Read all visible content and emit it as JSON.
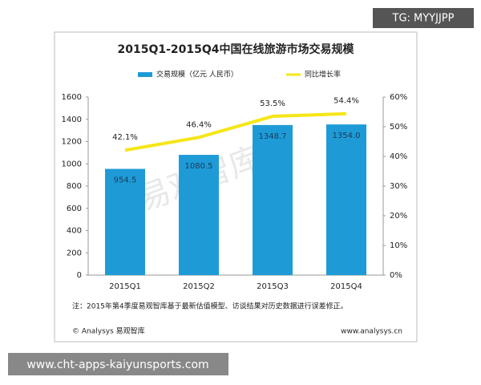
{
  "tag": "TG: MYYJJPP",
  "site_url": "www.cht-apps-kaiyunsports.com",
  "note": "注：2015年第4季度易观智库基于最新估值模型、访谈结果对历史数据进行误差修正。",
  "source": "© Analysys 易观智库",
  "source_url": "www.analysys.cn",
  "watermark": "易观智库",
  "chart_data": {
    "type": "bar",
    "title": "2015Q1-2015Q4中国在线旅游市场交易规模",
    "categories": [
      "2015Q1",
      "2015Q2",
      "2015Q3",
      "2015Q4"
    ],
    "series": [
      {
        "name": "交易规模（亿元 人民币）",
        "type": "bar",
        "color": "#1e9bd7",
        "values": [
          954.5,
          1080.5,
          1348.7,
          1354.0
        ],
        "value_labels": [
          "954.5",
          "1080.5",
          "1348.7",
          "1354.0"
        ]
      },
      {
        "name": "同比增长率",
        "type": "line",
        "axis": "y2",
        "color": "#f5e617",
        "values": [
          42.1,
          46.4,
          53.5,
          54.4
        ],
        "value_labels": [
          "42.1%",
          "46.4%",
          "53.5%",
          "54.4%"
        ]
      }
    ],
    "ylim": [
      0,
      1600
    ],
    "yticks": [
      0,
      200,
      400,
      600,
      800,
      1000,
      1200,
      1400,
      1600
    ],
    "y2lim": [
      0,
      60
    ],
    "y2ticks": [
      {
        "value": 0,
        "label": "0%"
      },
      {
        "value": 10,
        "label": "10%"
      },
      {
        "value": 20,
        "label": "20%"
      },
      {
        "value": 30,
        "label": "30%"
      },
      {
        "value": 40,
        "label": "40%"
      },
      {
        "value": 50,
        "label": "50%"
      },
      {
        "value": 60,
        "label": "60%"
      }
    ],
    "grid": false
  }
}
